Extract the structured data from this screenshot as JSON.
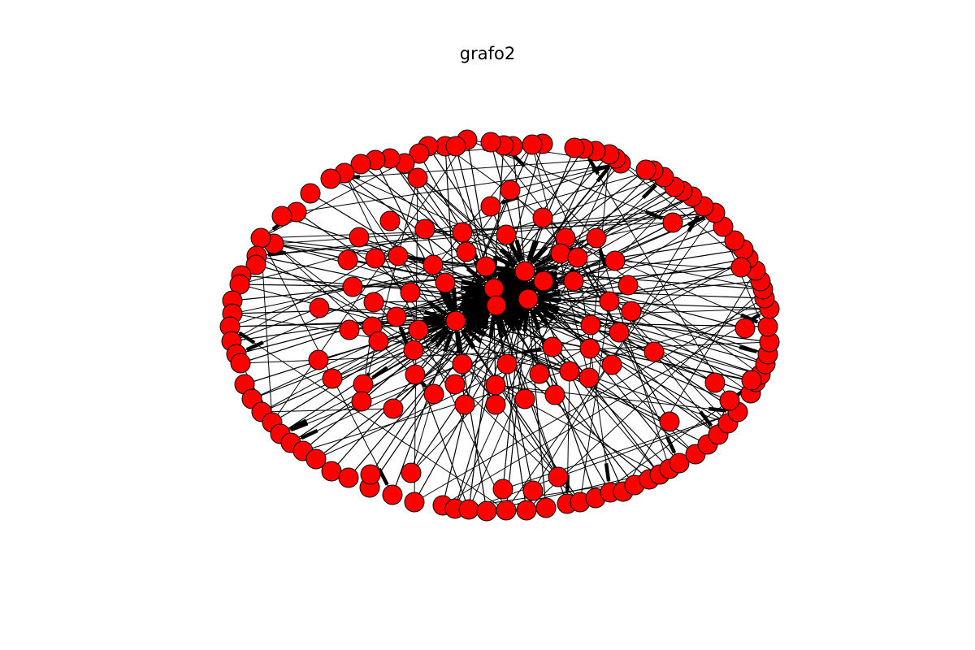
{
  "figure": {
    "title": "grafo2"
  },
  "graph": {
    "style": {
      "node_color": "#ff0000",
      "node_border_color": "#000000",
      "edge_color": "#000000",
      "background": "#ffffff"
    }
  }
}
